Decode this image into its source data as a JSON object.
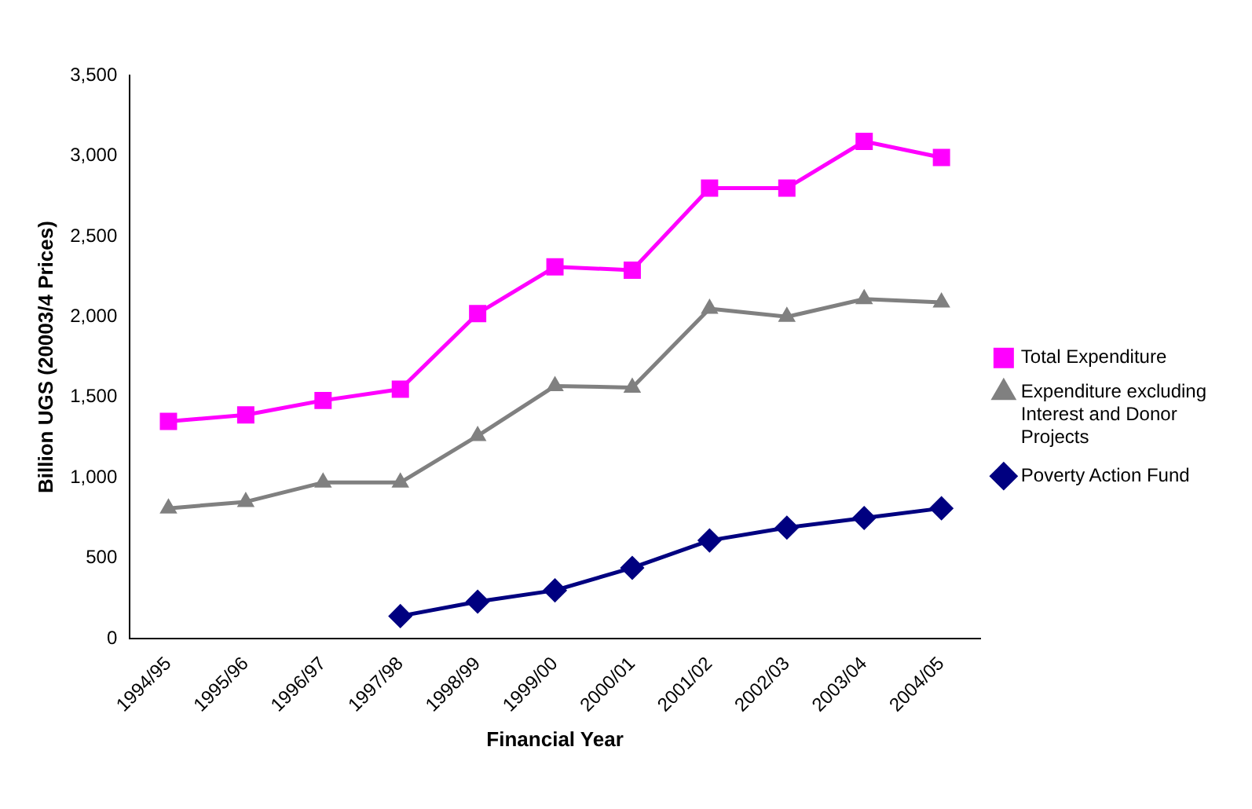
{
  "chart_data": {
    "type": "line",
    "xlabel": "Financial Year",
    "ylabel": "Billion UGS (20003/4 Prices)",
    "categories": [
      "1994/95",
      "1995/96",
      "1996/97",
      "1997/98",
      "1998/99",
      "1999/00",
      "2000/01",
      "2001/02",
      "2002/03",
      "2003/04",
      "2004/05"
    ],
    "series": [
      {
        "name": "Total Expenditure",
        "color": "#ff00ff",
        "marker": "square",
        "values": [
          1350,
          1390,
          1480,
          1550,
          2020,
          2310,
          2290,
          2800,
          2800,
          3090,
          2990
        ]
      },
      {
        "name": "Expenditure excluding Interest and Donor Projects",
        "color": "#808080",
        "marker": "triangle",
        "values": [
          810,
          850,
          970,
          970,
          1260,
          1570,
          1560,
          2050,
          2000,
          2110,
          2090
        ]
      },
      {
        "name": "Poverty Action Fund",
        "color": "#000080",
        "marker": "diamond",
        "values": [
          null,
          null,
          null,
          140,
          230,
          300,
          440,
          610,
          690,
          750,
          810
        ]
      }
    ],
    "ylim": [
      0,
      3500
    ],
    "yticks": [
      0,
      {
        "value": 500,
        "label": "500"
      },
      {
        "value": 1000,
        "label": "1,000"
      },
      {
        "value": 1500,
        "label": "1,500"
      },
      {
        "value": 2000,
        "label": "2,000"
      },
      {
        "value": 2500,
        "label": "2,500"
      },
      {
        "value": 3000,
        "label": "3,000"
      },
      {
        "value": 3500,
        "label": "3,500"
      }
    ],
    "grid": false,
    "legend": "right"
  }
}
